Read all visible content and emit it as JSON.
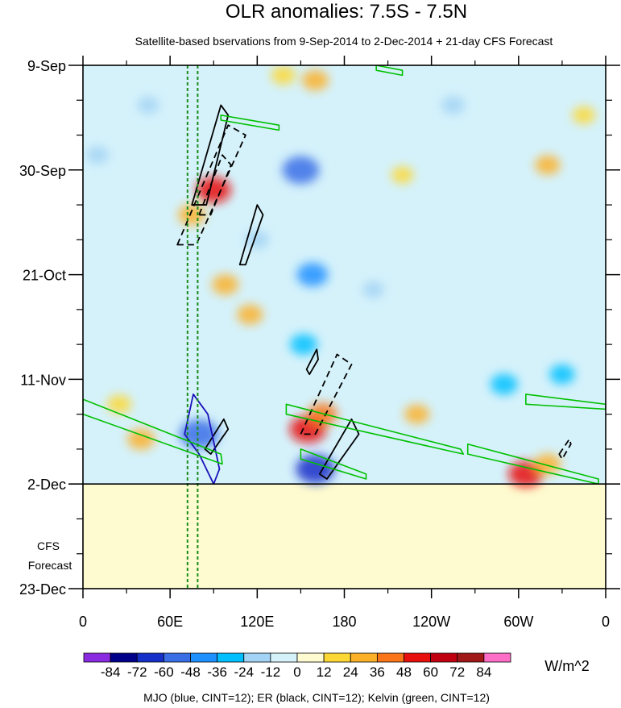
{
  "chart_data": {
    "type": "heatmap",
    "title": "OLR anomalies: 7.5S - 7.5N",
    "subtitle": "Satellite-based bservations from 9-Sep-2014 to 2-Dec-2014 + 21-day CFS Forecast",
    "x_ticks": [
      "0",
      "60E",
      "120E",
      "180",
      "120W",
      "60W",
      "0"
    ],
    "x_tick_lon": [
      0,
      60,
      120,
      180,
      240,
      300,
      360
    ],
    "y_ticks": [
      "9-Sep",
      "30-Sep",
      "21-Oct",
      "11-Nov",
      "2-Dec",
      "23-Dec"
    ],
    "y_tick_day": [
      0,
      21,
      42,
      63,
      84,
      105
    ],
    "observation_end_day": 84,
    "forecast_label_line1": "CFS",
    "forecast_label_line2": "Forecast",
    "colorbar": {
      "levels": [
        "-84",
        "-72",
        "-60",
        "-48",
        "-36",
        "-24",
        "-12",
        "0",
        "12",
        "24",
        "36",
        "48",
        "60",
        "72",
        "84"
      ],
      "colors": [
        "#8a2be2",
        "#00008b",
        "#1530c8",
        "#3a6ee6",
        "#1e90ff",
        "#00bfff",
        "#a3d3f5",
        "#d5f2fb",
        "#fefbd0",
        "#fdd835",
        "#fbb028",
        "#f97518",
        "#e8100c",
        "#c00010",
        "#a01818",
        "#ff6ec7"
      ],
      "units": "W/m^2"
    },
    "legend_note": "MJO (blue, CINT=12); ER (black, CINT=12); Kelvin (green, CINT=12)",
    "contour_colors": {
      "mjo": "#1a10b8",
      "er": "#000000",
      "kelvin": "#00c000"
    },
    "anomaly_features": [
      {
        "lon": 90,
        "day": 25,
        "value": 50
      },
      {
        "lon": 75,
        "day": 30,
        "value": 30
      },
      {
        "lon": 98,
        "day": 44,
        "value": 28
      },
      {
        "lon": 115,
        "day": 50,
        "value": 26
      },
      {
        "lon": 160,
        "day": 3,
        "value": 28
      },
      {
        "lon": 138,
        "day": 2,
        "value": 22
      },
      {
        "lon": 150,
        "day": 21,
        "value": -55
      },
      {
        "lon": 158,
        "day": 42,
        "value": -40
      },
      {
        "lon": 152,
        "day": 56,
        "value": -30
      },
      {
        "lon": 120,
        "day": 35,
        "value": -20
      },
      {
        "lon": 80,
        "day": 74,
        "value": -60
      },
      {
        "lon": 155,
        "day": 73,
        "value": 55
      },
      {
        "lon": 165,
        "day": 70,
        "value": 36
      },
      {
        "lon": 160,
        "day": 81,
        "value": -70
      },
      {
        "lon": 305,
        "day": 82,
        "value": 50
      },
      {
        "lon": 320,
        "day": 80,
        "value": 28
      },
      {
        "lon": 290,
        "day": 64,
        "value": -30
      },
      {
        "lon": 330,
        "day": 62,
        "value": -25
      },
      {
        "lon": 40,
        "day": 75,
        "value": 30
      },
      {
        "lon": 25,
        "day": 68,
        "value": 22
      },
      {
        "lon": 230,
        "day": 70,
        "value": 24
      },
      {
        "lon": 255,
        "day": 8,
        "value": -20
      },
      {
        "lon": 320,
        "day": 20,
        "value": 24
      },
      {
        "lon": 200,
        "day": 45,
        "value": -14
      },
      {
        "lon": 345,
        "day": 10,
        "value": 18
      },
      {
        "lon": 10,
        "day": 18,
        "value": -18
      },
      {
        "lon": 45,
        "day": 8,
        "value": -16
      },
      {
        "lon": 220,
        "day": 22,
        "value": 16
      }
    ],
    "contours": [
      {
        "kind": "er",
        "style": "solid",
        "points": [
          [
            75,
            28
          ],
          [
            95,
            8
          ],
          [
            100,
            10
          ],
          [
            85,
            28
          ]
        ]
      },
      {
        "kind": "er",
        "style": "dashed",
        "points": [
          [
            65,
            36
          ],
          [
            100,
            12
          ],
          [
            112,
            14
          ],
          [
            78,
            36
          ]
        ]
      },
      {
        "kind": "er",
        "style": "dashed",
        "points": [
          [
            80,
            30
          ],
          [
            96,
            18
          ],
          [
            102,
            20
          ],
          [
            88,
            30
          ]
        ]
      },
      {
        "kind": "er",
        "style": "solid",
        "points": [
          [
            108,
            40
          ],
          [
            120,
            28
          ],
          [
            124,
            30
          ],
          [
            112,
            40
          ]
        ]
      },
      {
        "kind": "er",
        "style": "solid",
        "points": [
          [
            154,
            61
          ],
          [
            161,
            57
          ],
          [
            162,
            59
          ],
          [
            156,
            62
          ]
        ]
      },
      {
        "kind": "er",
        "style": "dashed",
        "points": [
          [
            150,
            74
          ],
          [
            175,
            58
          ],
          [
            185,
            60
          ],
          [
            160,
            74
          ]
        ]
      },
      {
        "kind": "er",
        "style": "solid",
        "points": [
          [
            163,
            82
          ],
          [
            185,
            71
          ],
          [
            190,
            74
          ],
          [
            168,
            83
          ]
        ]
      },
      {
        "kind": "er",
        "style": "solid",
        "points": [
          [
            84,
            77
          ],
          [
            97,
            71
          ],
          [
            100,
            73
          ],
          [
            88,
            78
          ]
        ]
      },
      {
        "kind": "er",
        "style": "dashed",
        "points": [
          [
            328,
            78
          ],
          [
            335,
            75
          ],
          [
            336,
            76
          ],
          [
            330,
            79
          ]
        ]
      },
      {
        "kind": "mjo",
        "style": "solid",
        "points": [
          [
            70,
            74
          ],
          [
            76,
            66
          ],
          [
            86,
            70
          ],
          [
            94,
            81
          ],
          [
            90,
            84
          ],
          [
            80,
            78
          ]
        ]
      },
      {
        "kind": "kelvin",
        "style": "solid",
        "points": [
          [
            0,
            67
          ],
          [
            95,
            78
          ],
          [
            96,
            80
          ],
          [
            0,
            70
          ]
        ]
      },
      {
        "kind": "kelvin",
        "style": "solid",
        "points": [
          [
            140,
            68
          ],
          [
            260,
            77
          ],
          [
            262,
            78
          ],
          [
            140,
            70
          ]
        ]
      },
      {
        "kind": "kelvin",
        "style": "solid",
        "points": [
          [
            150,
            77
          ],
          [
            195,
            82
          ],
          [
            195,
            83
          ],
          [
            150,
            79
          ]
        ]
      },
      {
        "kind": "kelvin",
        "style": "solid",
        "points": [
          [
            265,
            76
          ],
          [
            355,
            83
          ],
          [
            355,
            84
          ],
          [
            265,
            78
          ]
        ]
      },
      {
        "kind": "kelvin",
        "style": "solid",
        "points": [
          [
            305,
            66
          ],
          [
            360,
            68
          ],
          [
            360,
            69
          ],
          [
            305,
            68
          ]
        ]
      },
      {
        "kind": "kelvin",
        "style": "solid",
        "points": [
          [
            95,
            10
          ],
          [
            135,
            12
          ],
          [
            135,
            13
          ],
          [
            95,
            11
          ]
        ]
      },
      {
        "kind": "kelvin",
        "style": "solid",
        "points": [
          [
            202,
            0
          ],
          [
            220,
            1
          ],
          [
            220,
            2
          ],
          [
            202,
            1
          ]
        ]
      }
    ],
    "vertical_lines_lon": [
      72,
      79
    ],
    "vertical_line_color": "#1a8c1a"
  }
}
